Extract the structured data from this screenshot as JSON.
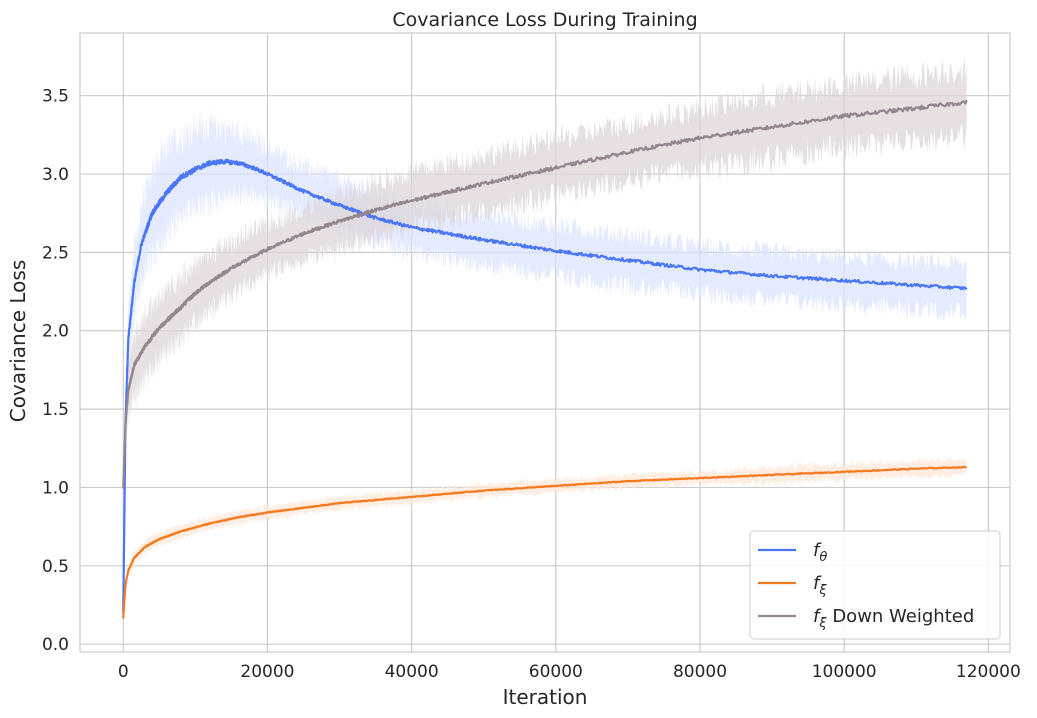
{
  "chart_data": {
    "type": "line",
    "title": "Covariance Loss During Training",
    "xlabel": "Iteration",
    "ylabel": "Covariance Loss",
    "xlim": [
      -6000,
      123000
    ],
    "ylim": [
      -0.05,
      3.9
    ],
    "xticks": [
      0,
      20000,
      40000,
      60000,
      80000,
      100000,
      120000
    ],
    "xtick_labels": [
      "0",
      "20000",
      "40000",
      "60000",
      "80000",
      "100000",
      "120000"
    ],
    "yticks": [
      0.0,
      0.5,
      1.0,
      1.5,
      2.0,
      2.5,
      3.0,
      3.5
    ],
    "ytick_labels": [
      "0.0",
      "0.5",
      "1.0",
      "1.5",
      "2.0",
      "2.5",
      "3.0",
      "3.5"
    ],
    "grid": true,
    "legend_position": "lower right",
    "series": [
      {
        "name": "f_theta",
        "legend_base": "f",
        "legend_sub": "θ",
        "legend_suffix": "",
        "color": "#4a76f5",
        "band_color": "#dbe4fd",
        "x": [
          0,
          300,
          700,
          1500,
          2500,
          4000,
          6000,
          8000,
          10000,
          12000,
          14000,
          16000,
          18000,
          20000,
          25000,
          30000,
          35000,
          40000,
          50000,
          60000,
          70000,
          80000,
          90000,
          100000,
          110000,
          117000
        ],
        "y": [
          0.2,
          1.4,
          1.95,
          2.3,
          2.55,
          2.75,
          2.88,
          2.98,
          3.03,
          3.07,
          3.08,
          3.07,
          3.04,
          3.0,
          2.89,
          2.8,
          2.72,
          2.66,
          2.58,
          2.51,
          2.45,
          2.39,
          2.35,
          2.32,
          2.29,
          2.27
        ],
        "band_halfwidth": [
          0.02,
          0.15,
          0.2,
          0.22,
          0.25,
          0.27,
          0.27,
          0.26,
          0.26,
          0.24,
          0.22,
          0.2,
          0.18,
          0.17,
          0.16,
          0.16,
          0.16,
          0.16,
          0.16,
          0.16,
          0.16,
          0.15,
          0.15,
          0.15,
          0.15,
          0.15
        ]
      },
      {
        "name": "f_xi",
        "legend_base": "f",
        "legend_sub": "ξ",
        "legend_suffix": "",
        "color": "#f5791f",
        "band_color": "#fde7d6",
        "x": [
          0,
          300,
          700,
          1500,
          3000,
          5000,
          8000,
          12000,
          16000,
          20000,
          30000,
          40000,
          50000,
          60000,
          70000,
          80000,
          90000,
          100000,
          110000,
          117000
        ],
        "y": [
          0.17,
          0.38,
          0.47,
          0.55,
          0.62,
          0.67,
          0.72,
          0.77,
          0.81,
          0.84,
          0.9,
          0.94,
          0.98,
          1.01,
          1.04,
          1.06,
          1.08,
          1.1,
          1.12,
          1.13
        ],
        "band_halfwidth": [
          0.01,
          0.03,
          0.03,
          0.04,
          0.04,
          0.04,
          0.04,
          0.04,
          0.04,
          0.04,
          0.04,
          0.04,
          0.04,
          0.04,
          0.04,
          0.04,
          0.05,
          0.05,
          0.05,
          0.05
        ]
      },
      {
        "name": "f_xi Down Weighted",
        "legend_base": "f",
        "legend_sub": "ξ",
        "legend_suffix": " Down Weighted",
        "color": "#94868e",
        "band_color": "#ddd6da",
        "x": [
          0,
          300,
          700,
          1500,
          3000,
          5000,
          8000,
          10000,
          12000,
          15000,
          20000,
          25000,
          30000,
          35000,
          40000,
          50000,
          60000,
          70000,
          80000,
          90000,
          100000,
          110000,
          117000
        ],
        "y": [
          1.0,
          1.4,
          1.62,
          1.78,
          1.9,
          2.02,
          2.15,
          2.24,
          2.31,
          2.4,
          2.52,
          2.62,
          2.7,
          2.77,
          2.83,
          2.94,
          3.04,
          3.14,
          3.23,
          3.3,
          3.37,
          3.42,
          3.46
        ],
        "band_halfwidth": [
          0.08,
          0.15,
          0.18,
          0.2,
          0.2,
          0.2,
          0.2,
          0.19,
          0.18,
          0.17,
          0.16,
          0.16,
          0.17,
          0.18,
          0.18,
          0.18,
          0.18,
          0.18,
          0.19,
          0.2,
          0.2,
          0.21,
          0.22
        ]
      }
    ]
  }
}
